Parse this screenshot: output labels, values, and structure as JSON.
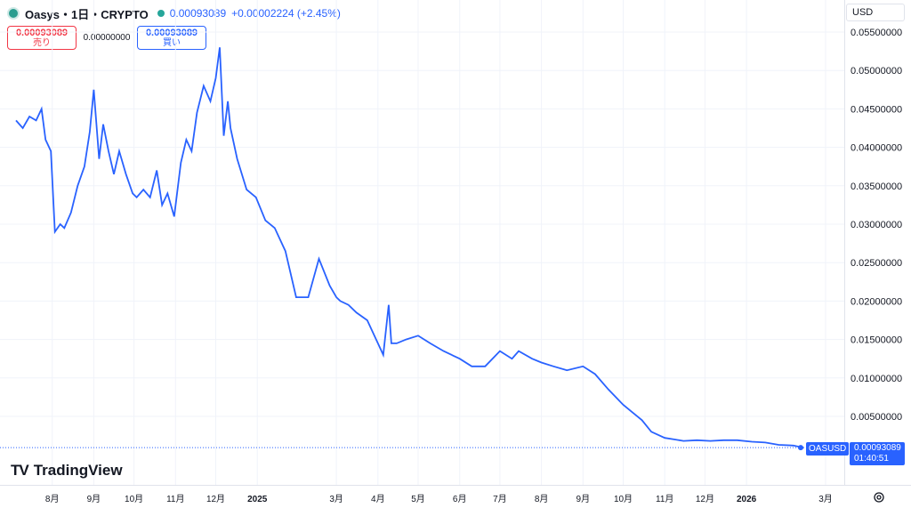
{
  "header": {
    "title": "Oasys・1日・CRYPTO",
    "price": "0.00093089",
    "change": "+0.00002224 (+2.45%)"
  },
  "trade": {
    "sell_value": "0.00093089",
    "sell_label": "売り",
    "spread": "0.00000000",
    "buy_value": "0.00093089",
    "buy_label": "買い"
  },
  "currency": "USD",
  "brand": "TradingView",
  "symbol_tag": "OASUSD",
  "last_price": "0.00093089",
  "countdown": "01:40:51",
  "colors": {
    "line": "#2962ff",
    "sell": "#f23645",
    "buy": "#2962ff",
    "status": "#26a69a"
  },
  "chart_data": {
    "type": "line",
    "y_ticks": [
      "0.05500000",
      "0.05000000",
      "0.04500000",
      "0.04000000",
      "0.03500000",
      "0.03000000",
      "0.02500000",
      "0.02000000",
      "0.01500000",
      "0.01000000",
      "0.00500000"
    ],
    "y_tick_values": [
      0.055,
      0.05,
      0.045,
      0.04,
      0.035,
      0.03,
      0.025,
      0.02,
      0.015,
      0.01,
      0.005
    ],
    "ylim": [
      0,
      0.0575
    ],
    "x_ticks": [
      {
        "label": "8月",
        "bold": false
      },
      {
        "label": "9月",
        "bold": false
      },
      {
        "label": "10月",
        "bold": false
      },
      {
        "label": "11月",
        "bold": false
      },
      {
        "label": "12月",
        "bold": false
      },
      {
        "label": "2025",
        "bold": true
      },
      {
        "label": "3月",
        "bold": false
      },
      {
        "label": "4月",
        "bold": false
      },
      {
        "label": "5月",
        "bold": false
      },
      {
        "label": "6月",
        "bold": false
      },
      {
        "label": "7月",
        "bold": false
      },
      {
        "label": "8月",
        "bold": false
      },
      {
        "label": "9月",
        "bold": false
      },
      {
        "label": "10月",
        "bold": false
      },
      {
        "label": "11月",
        "bold": false
      },
      {
        "label": "12月",
        "bold": false
      },
      {
        "label": "2026",
        "bold": true
      },
      {
        "label": "3月",
        "bold": false
      }
    ],
    "x_tick_dates": [
      "2024-08-01",
      "2024-09-01",
      "2024-10-01",
      "2024-11-01",
      "2024-12-01",
      "2025-01-01",
      "2025-03-01",
      "2025-04-01",
      "2025-05-01",
      "2025-06-01",
      "2025-07-01",
      "2025-08-01",
      "2025-09-01",
      "2025-10-01",
      "2025-11-01",
      "2025-12-01",
      "2026-01-01",
      "2026-03-01"
    ],
    "series": [
      {
        "dates": [
          "2024-07-05",
          "2024-07-10",
          "2024-07-15",
          "2024-07-20",
          "2024-07-24",
          "2024-07-27",
          "2024-07-31",
          "2024-08-03",
          "2024-08-07",
          "2024-08-10",
          "2024-08-15",
          "2024-08-20",
          "2024-08-25",
          "2024-08-29",
          "2024-09-01",
          "2024-09-05",
          "2024-09-08",
          "2024-09-12",
          "2024-09-16",
          "2024-09-20",
          "2024-09-25",
          "2024-09-30",
          "2024-10-03",
          "2024-10-08",
          "2024-10-13",
          "2024-10-18",
          "2024-10-22",
          "2024-10-26",
          "2024-10-31",
          "2024-11-05",
          "2024-11-09",
          "2024-11-13",
          "2024-11-17",
          "2024-11-22",
          "2024-11-27",
          "2024-12-01",
          "2024-12-04",
          "2024-12-07",
          "2024-12-10",
          "2024-12-12",
          "2024-12-17",
          "2024-12-24",
          "2024-12-31",
          "2025-01-07",
          "2025-01-14",
          "2025-01-22",
          "2025-01-30",
          "2025-02-08",
          "2025-02-16",
          "2025-02-24",
          "2025-03-01",
          "2025-03-04",
          "2025-03-10",
          "2025-03-16",
          "2025-03-24",
          "2025-04-01",
          "2025-04-05",
          "2025-04-09",
          "2025-04-11",
          "2025-04-15",
          "2025-04-22",
          "2025-05-01",
          "2025-05-10",
          "2025-05-20",
          "2025-06-01",
          "2025-06-10",
          "2025-06-20",
          "2025-07-01",
          "2025-07-10",
          "2025-07-15",
          "2025-07-25",
          "2025-08-01",
          "2025-08-10",
          "2025-08-20",
          "2025-09-01",
          "2025-09-10",
          "2025-09-20",
          "2025-10-01",
          "2025-10-08",
          "2025-10-15",
          "2025-10-22",
          "2025-11-01",
          "2025-11-08",
          "2025-11-15",
          "2025-11-25",
          "2025-12-05",
          "2025-12-15",
          "2025-12-25",
          "2026-01-05",
          "2026-01-15",
          "2026-01-25",
          "2026-02-05",
          "2026-02-15",
          "2026-02-25"
        ],
        "values": [
          0.0435,
          0.0425,
          0.044,
          0.0435,
          0.045,
          0.041,
          0.0395,
          0.029,
          0.03,
          0.0295,
          0.0315,
          0.035,
          0.0375,
          0.042,
          0.0475,
          0.0385,
          0.043,
          0.0395,
          0.0365,
          0.0395,
          0.0365,
          0.034,
          0.0335,
          0.0345,
          0.0335,
          0.037,
          0.0325,
          0.034,
          0.031,
          0.038,
          0.041,
          0.0395,
          0.0445,
          0.048,
          0.046,
          0.049,
          0.053,
          0.0415,
          0.046,
          0.0425,
          0.0385,
          0.0345,
          0.0335,
          0.0305,
          0.0295,
          0.0265,
          0.0205,
          0.0205,
          0.0255,
          0.022,
          0.0205,
          0.02,
          0.0195,
          0.0185,
          0.0175,
          0.0145,
          0.013,
          0.0195,
          0.0145,
          0.0145,
          0.015,
          0.0155,
          0.0145,
          0.0135,
          0.0125,
          0.0115,
          0.0115,
          0.0135,
          0.0125,
          0.0135,
          0.0125,
          0.012,
          0.0115,
          0.011,
          0.0115,
          0.0105,
          0.0085,
          0.0065,
          0.0055,
          0.0045,
          0.003,
          0.0022,
          0.002,
          0.0018,
          0.0019,
          0.0018,
          0.0019,
          0.0019,
          0.0017,
          0.0016,
          0.0013,
          0.0012,
          0.00093089,
          0.00093089
        ]
      }
    ]
  }
}
